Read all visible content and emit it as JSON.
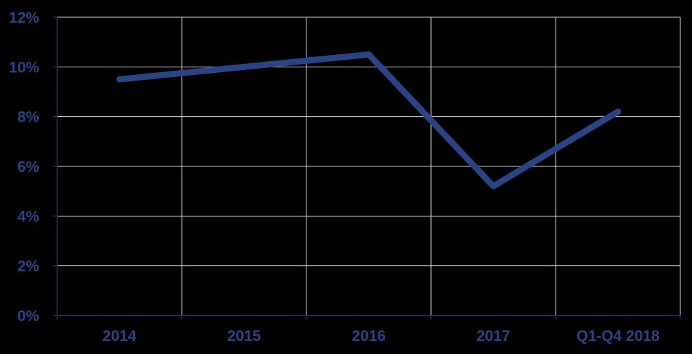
{
  "chart_data": {
    "type": "line",
    "title": "",
    "xlabel": "",
    "ylabel": "",
    "categories": [
      "2014",
      "2015",
      "2016",
      "2017",
      "Q1-Q4 2018"
    ],
    "series": [
      {
        "values": [
          9.5,
          10.0,
          10.5,
          5.2,
          8.2
        ]
      }
    ],
    "ylim": [
      0,
      12
    ],
    "y_ticks": [
      0,
      2,
      4,
      6,
      8,
      10,
      12
    ],
    "y_tick_labels": [
      "0%",
      "2%",
      "4%",
      "6%",
      "8%",
      "10%",
      "12%"
    ],
    "grid": true,
    "legend": "none",
    "colors": {
      "background": "#000000",
      "line": "#2b4484",
      "grid": "#d9d9d9",
      "label": "#2b4484",
      "axis": "#1f2f5c"
    }
  }
}
